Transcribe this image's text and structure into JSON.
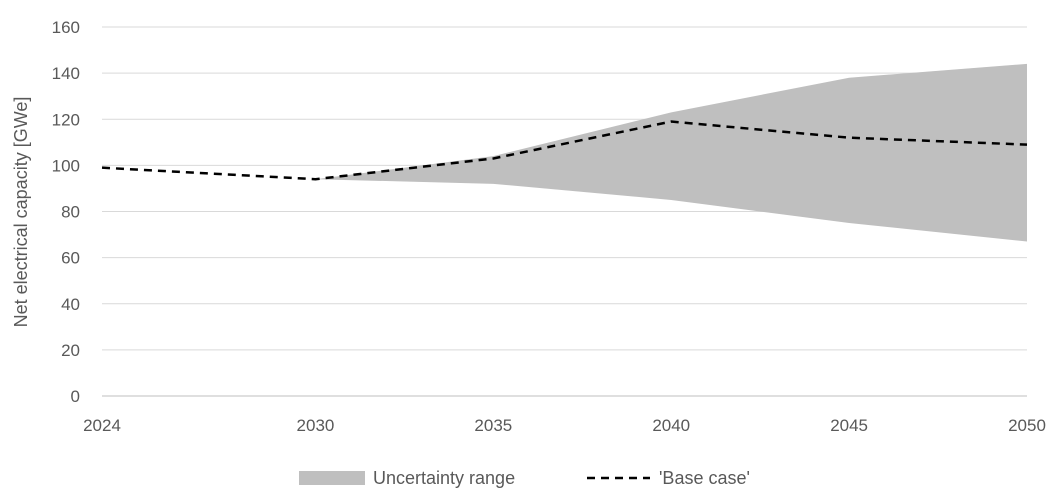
{
  "chart_data": {
    "type": "area",
    "title": "",
    "xlabel": "",
    "ylabel": "Net electrical capacity [GWe]",
    "x": [
      2024,
      2030,
      2035,
      2040,
      2045,
      2050
    ],
    "xticks": [
      "2024",
      "2030",
      "2035",
      "2040",
      "2045",
      "2050"
    ],
    "xlim": [
      2024,
      2050
    ],
    "ylim": [
      0,
      160
    ],
    "yticks": [
      "0",
      "20",
      "40",
      "60",
      "80",
      "100",
      "120",
      "140",
      "160"
    ],
    "grid": true,
    "legend_position": "bottom",
    "series": [
      {
        "name": "Uncertainty range",
        "kind": "band",
        "color": "#bfbfbf",
        "x": [
          2030,
          2035,
          2040,
          2045,
          2050
        ],
        "lower": [
          94,
          92,
          85,
          75,
          67
        ],
        "upper": [
          94,
          104,
          123,
          138,
          144
        ]
      },
      {
        "name": "'Base case'",
        "kind": "line",
        "style": "dashed",
        "color": "#000000",
        "x": [
          2024,
          2030,
          2035,
          2040,
          2045,
          2050
        ],
        "values": [
          99,
          94,
          103,
          119,
          112,
          109
        ]
      }
    ]
  }
}
